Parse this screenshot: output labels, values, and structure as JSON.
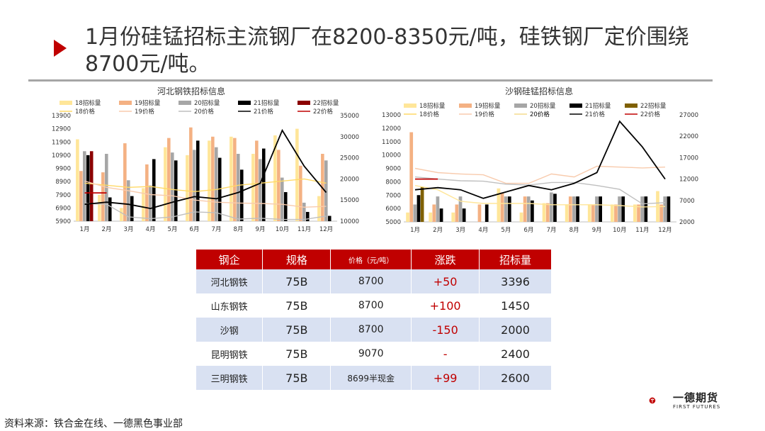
{
  "title": "1月份硅锰招标主流钢厂在8200-8350元/吨，硅铁钢厂定价围绕8700元/吨。",
  "colors": {
    "s18": "#ffe699",
    "s19": "#f4b183",
    "s20": "#a6a6a6",
    "s21": "#000000",
    "s22": "#8b0000",
    "s22_right": "#7f6000",
    "p18": "#ffd966",
    "p19": "#f8cbad",
    "p20": "#bfbfbf",
    "p21": "#000000",
    "p22": "#c00000",
    "p20_right": "#ffe699",
    "accent": "#c00000"
  },
  "chart_data": [
    {
      "type": "bar",
      "title": "河北钢铁招标信息",
      "categories": [
        "1月",
        "2月",
        "3月",
        "4月",
        "5月",
        "6月",
        "7月",
        "8月",
        "9月",
        "10月",
        "11月",
        "12月"
      ],
      "ylim": [
        5900,
        13900
      ],
      "yticks": [
        5900,
        6900,
        7900,
        8900,
        9900,
        10900,
        11900,
        12900,
        13900
      ],
      "y2lim": [
        10000,
        35000
      ],
      "y2ticks": [
        10000,
        15000,
        20000,
        25000,
        30000,
        35000
      ],
      "series": [
        {
          "name": "18招标量",
          "kind": "bar",
          "axis": "left",
          "color_key": "s18",
          "values": [
            12100,
            7900,
            6900,
            8400,
            11500,
            10900,
            12000,
            12300,
            11000,
            12400,
            12900,
            7800
          ]
        },
        {
          "name": "19招标量",
          "kind": "bar",
          "axis": "left",
          "color_key": "s19",
          "values": [
            9700,
            9600,
            11800,
            10200,
            12200,
            13000,
            12300,
            12200,
            12000,
            11300,
            10100,
            11000
          ]
        },
        {
          "name": "20招标量",
          "kind": "bar",
          "axis": "left",
          "color_key": "s20",
          "values": [
            11200,
            11000,
            9000,
            8600,
            11100,
            11300,
            11500,
            11000,
            10600,
            9200,
            7300,
            10500
          ]
        },
        {
          "name": "21招标量",
          "kind": "bar",
          "axis": "left",
          "color_key": "s21",
          "values": [
            10900,
            7700,
            7800,
            10600,
            10500,
            12000,
            10700,
            9800,
            11400,
            8100,
            6600,
            6300
          ]
        },
        {
          "name": "22招标量",
          "kind": "bar",
          "axis": "left",
          "color_key": "s22",
          "values": [
            11200,
            null,
            null,
            null,
            null,
            null,
            null,
            null,
            null,
            null,
            null,
            null
          ]
        },
        {
          "name": "18价格",
          "kind": "line",
          "axis": "right",
          "color_key": "p18",
          "values": [
            19000,
            18500,
            18000,
            18200,
            17500,
            17000,
            17500,
            18500,
            19000,
            19500,
            20000,
            19000
          ]
        },
        {
          "name": "19价格",
          "kind": "line",
          "axis": "right",
          "color_key": "p19",
          "values": [
            19500,
            18000,
            17200,
            16300,
            16000,
            15000,
            14500,
            14300,
            14200,
            14000,
            13300,
            13500
          ]
        },
        {
          "name": "20价格",
          "kind": "line",
          "axis": "right",
          "color_key": "p20",
          "values": [
            14200,
            14000,
            11000,
            10600,
            11000,
            12200,
            12000,
            10500,
            10700,
            10400,
            10400,
            11200
          ]
        },
        {
          "name": "21价格",
          "kind": "line",
          "axis": "right",
          "color_key": "p21",
          "values": [
            14000,
            14500,
            14000,
            13000,
            14500,
            15800,
            15300,
            16800,
            19000,
            31500,
            23000,
            16800
          ]
        },
        {
          "name": "22价格",
          "kind": "line",
          "axis": "right",
          "color_key": "p22",
          "values": [
            16700,
            16700,
            null,
            null,
            null,
            null,
            null,
            null,
            null,
            null,
            null,
            null
          ]
        }
      ]
    },
    {
      "type": "bar",
      "title": "沙钢硅锰招标信息",
      "categories": [
        "1月",
        "2月",
        "3月",
        "4月",
        "5月",
        "6月",
        "7月",
        "8月",
        "9月",
        "10月",
        "11月",
        "12月"
      ],
      "ylim": [
        5000,
        13000
      ],
      "yticks": [
        5000,
        6000,
        7000,
        8000,
        9000,
        10000,
        11000,
        12000,
        13000
      ],
      "y2lim": [
        2000,
        27000
      ],
      "y2ticks": [
        2000,
        7000,
        12000,
        17000,
        22000,
        27000
      ],
      "series": [
        {
          "name": "18招标量",
          "kind": "bar",
          "axis": "left",
          "color_key": "s18",
          "values": [
            5700,
            5700,
            5700,
            null,
            7500,
            5700,
            6400,
            6300,
            6300,
            6300,
            6300,
            7300
          ]
        },
        {
          "name": "19招标量",
          "kind": "bar",
          "axis": "left",
          "color_key": "s19",
          "values": [
            11700,
            6300,
            6300,
            6300,
            7200,
            6900,
            6400,
            6900,
            6300,
            6300,
            6300,
            6300
          ]
        },
        {
          "name": "20招标量",
          "kind": "bar",
          "axis": "left",
          "color_key": "s20",
          "values": [
            6300,
            6900,
            6900,
            null,
            6900,
            6900,
            7200,
            6900,
            6900,
            6900,
            6900,
            6900
          ]
        },
        {
          "name": "21招标量",
          "kind": "bar",
          "axis": "left",
          "color_key": "s21",
          "values": [
            7000,
            6000,
            6000,
            6300,
            6900,
            6600,
            7100,
            6900,
            6900,
            6900,
            6900,
            6900
          ]
        },
        {
          "name": "22招标量",
          "kind": "bar",
          "axis": "left",
          "color_key": "s22_right",
          "values": [
            7600,
            null,
            null,
            null,
            null,
            null,
            null,
            null,
            null,
            null,
            null,
            null
          ]
        },
        {
          "name": "18价格",
          "kind": "line",
          "axis": "right",
          "color_key": "p18",
          "values": [
            null,
            null,
            null,
            null,
            null,
            null,
            null,
            null,
            null,
            null,
            null,
            null
          ]
        },
        {
          "name": "19价格",
          "kind": "line",
          "axis": "right",
          "color_key": "p19",
          "values": [
            14500,
            13500,
            13200,
            13000,
            11000,
            11000,
            13200,
            12500,
            15000,
            14800,
            14600,
            14800
          ]
        },
        {
          "name": "20价格",
          "kind": "line",
          "axis": "right",
          "color_key": "p20",
          "values": [
            12500,
            12000,
            11600,
            11500,
            10800,
            10600,
            11200,
            11200,
            10500,
            9600,
            6200,
            6500
          ]
        },
        {
          "name": "20价格",
          "kind": "line",
          "axis": "right",
          "color_key": "p20_right",
          "values": [
            10500,
            9500,
            6800,
            6300,
            6300,
            6300,
            6000,
            6000,
            6000,
            5800,
            5500,
            5600
          ]
        },
        {
          "name": "21价格",
          "kind": "line",
          "axis": "right",
          "color_key": "p21",
          "values": [
            9500,
            10000,
            9500,
            7500,
            9000,
            10500,
            9500,
            11000,
            13500,
            25500,
            19500,
            12000
          ]
        },
        {
          "name": "22价格",
          "kind": "line",
          "axis": "right",
          "color_key": "p22",
          "values": [
            12000,
            12000,
            null,
            null,
            null,
            null,
            null,
            null,
            null,
            null,
            null,
            null
          ]
        }
      ]
    },
    {
      "type": "table",
      "headers": [
        "钢企",
        "规格",
        "价格（元/吨）",
        "涨跌",
        "招标量"
      ],
      "rows": [
        [
          "河北钢铁",
          "75B",
          "8700",
          "+50",
          "3396"
        ],
        [
          "山东钢铁",
          "75B",
          "8700",
          "+100",
          "1450"
        ],
        [
          "沙钢",
          "75B",
          "8700",
          "-150",
          "2000"
        ],
        [
          "昆明钢铁",
          "75B",
          "9070",
          "-",
          "2400"
        ],
        [
          "三明钢铁",
          "75B",
          "8699半现金",
          "+99",
          "2600"
        ]
      ]
    }
  ],
  "footer": {
    "source": "资料来源：铁合金在线、一德黑色事业部",
    "logo_text": "一德期货",
    "logo_sub": "FIRST FUTURES"
  }
}
